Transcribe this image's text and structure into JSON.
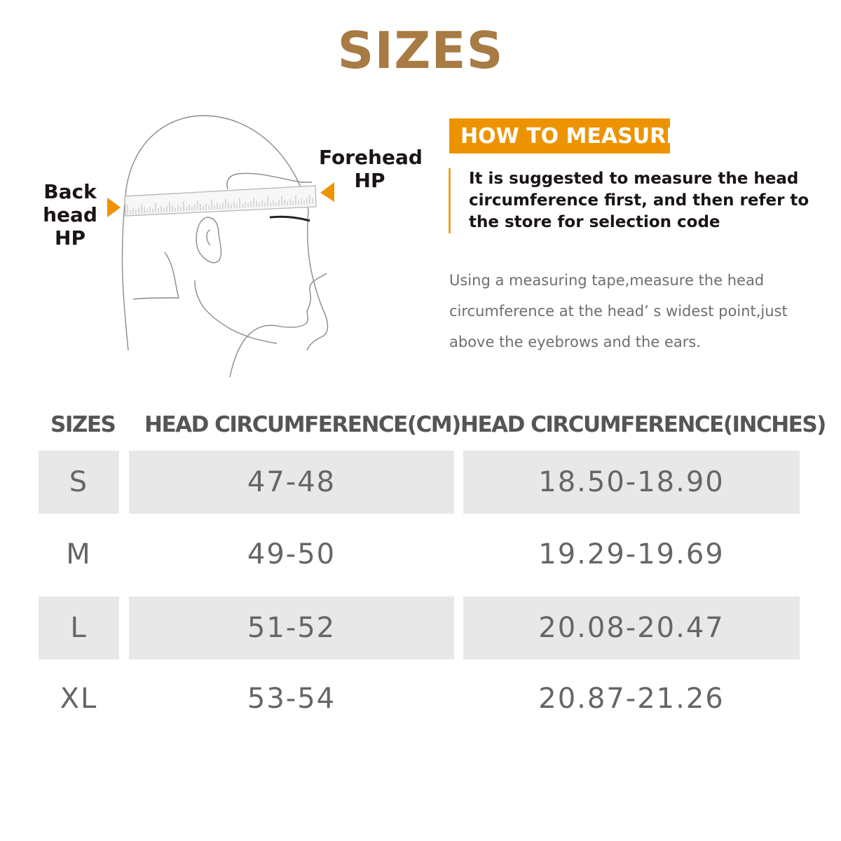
{
  "title": "SIZES",
  "diagram": {
    "back_label": [
      "Back",
      "head",
      "HP"
    ],
    "forehead_label": [
      "Forehead",
      "HP"
    ],
    "arrow_color": "#ee9300"
  },
  "how_to_measure": {
    "badge": "HOW TO MEASURE",
    "suggestion": "It is suggested to measure the head circumference first, and then refer to the store for selection code",
    "description": "Using a measuring tape,measure the head circumference at the head’ s widest point,just above the eyebrows and the ears."
  },
  "table": {
    "headers": [
      "SIZES",
      "HEAD CIRCUMFERENCE(CM)",
      "HEAD CIRCUMFERENCE(INCHES)"
    ],
    "rows": [
      {
        "size": "S",
        "cm": "47-48",
        "inches": "18.50-18.90"
      },
      {
        "size": "M",
        "cm": "49-50",
        "inches": "19.29-19.69"
      },
      {
        "size": "L",
        "cm": "51-52",
        "inches": "20.08-20.47"
      },
      {
        "size": "XL",
        "cm": "53-54",
        "inches": "20.87-21.26"
      }
    ]
  },
  "colors": {
    "title": "#a87b45",
    "accent": "#ee9300",
    "row_shade": "#e8e8e8"
  }
}
